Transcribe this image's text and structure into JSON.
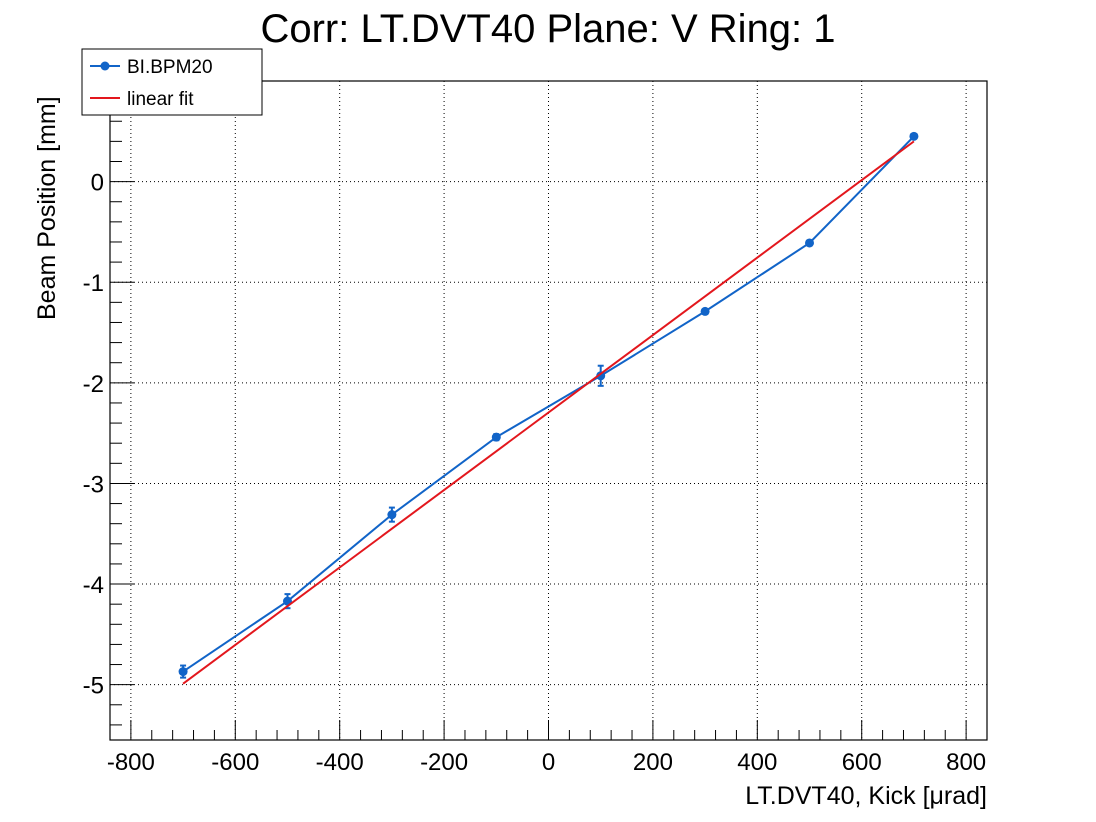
{
  "chart_data": {
    "type": "line",
    "title": "Corr: LT.DVT40 Plane: V Ring: 1",
    "xlabel": "LT.DVT40, Kick [μrad]",
    "ylabel": "Beam Position [mm]",
    "xlim": [
      -840,
      840
    ],
    "ylim": [
      -5.55,
      1.0
    ],
    "xticks": [
      -800,
      -600,
      -400,
      -200,
      0,
      200,
      400,
      600,
      800
    ],
    "yticks": [
      -5,
      -4,
      -3,
      -2,
      -1,
      0
    ],
    "grid": true,
    "legend_position": "top-left",
    "series": [
      {
        "name": "BI.BPM20",
        "color": "#1164c8",
        "marker": "circle",
        "x": [
          -700,
          -500,
          -300,
          -100,
          100,
          300,
          500,
          700
        ],
        "y": [
          -4.87,
          -4.17,
          -3.31,
          -2.54,
          -1.93,
          -1.29,
          -0.61,
          0.45
        ],
        "yerr": [
          0.06,
          0.07,
          0.07,
          0.03,
          0.1,
          0.02,
          0.02,
          0.02
        ]
      },
      {
        "name": "linear fit",
        "color": "#e3171d",
        "marker": "none",
        "x": [
          -700,
          700
        ],
        "y": [
          -4.99,
          0.4
        ]
      }
    ]
  }
}
